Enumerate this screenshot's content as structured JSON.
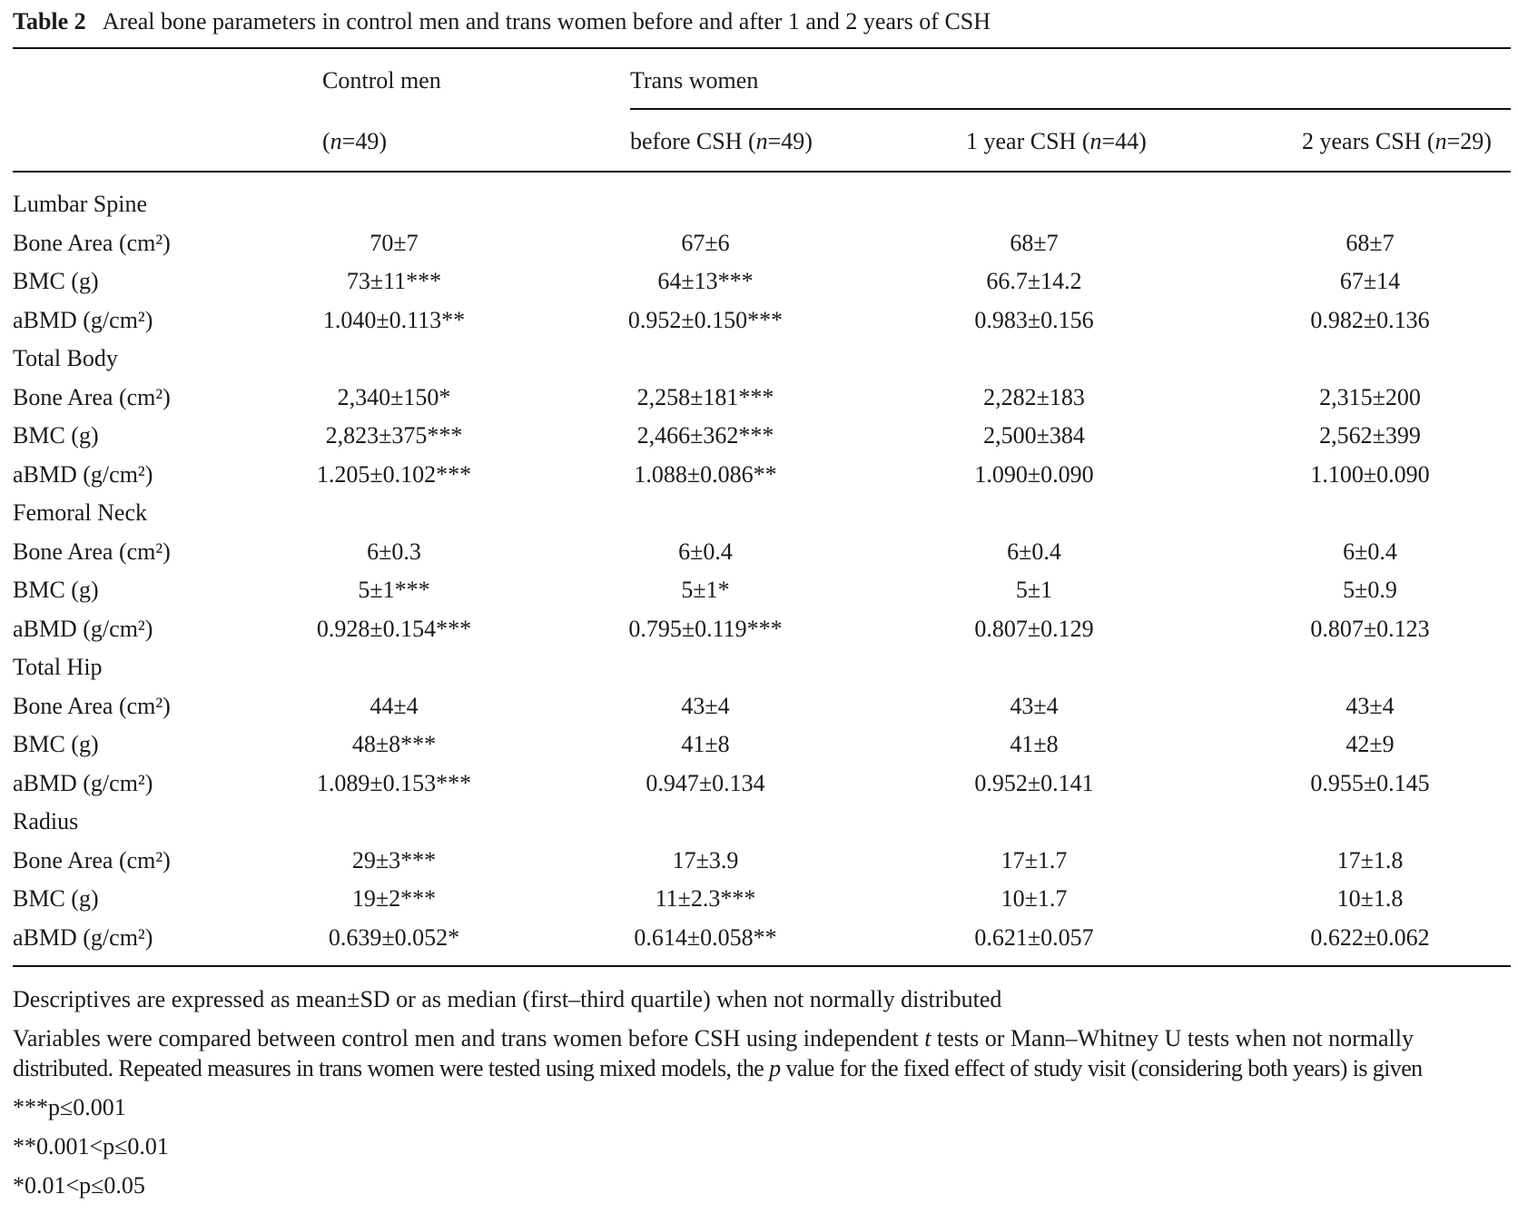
{
  "caption": {
    "label": "Table 2",
    "text": "Areal bone parameters in control men and trans women before and after 1 and 2 years of CSH"
  },
  "header": {
    "group1": "Control men",
    "group2": "Trans women",
    "columns": [
      {
        "pre": "(",
        "n": "n",
        "post": "=49)"
      },
      {
        "pre": "before CSH (",
        "n": "n",
        "post": "=49)"
      },
      {
        "pre": "1 year CSH (",
        "n": "n",
        "post": "=44)"
      },
      {
        "pre": "2 years CSH (",
        "n": "n",
        "post": "=29)"
      }
    ]
  },
  "sections": [
    {
      "name": "Lumbar Spine",
      "rows": [
        {
          "label": "Bone Area (cm²)",
          "values": [
            "70±7",
            "67±6",
            "68±7",
            "68±7"
          ]
        },
        {
          "label": "BMC (g)",
          "values": [
            "73±11***",
            "64±13***",
            "66.7±14.2",
            "67±14"
          ]
        },
        {
          "label": "aBMD (g/cm²)",
          "values": [
            "1.040±0.113**",
            "0.952±0.150***",
            "0.983±0.156",
            "0.982±0.136"
          ]
        }
      ]
    },
    {
      "name": "Total Body",
      "rows": [
        {
          "label": "Bone Area (cm²)",
          "values": [
            "2,340±150*",
            "2,258±181***",
            "2,282±183",
            "2,315±200"
          ]
        },
        {
          "label": "BMC (g)",
          "values": [
            "2,823±375***",
            "2,466±362***",
            "2,500±384",
            "2,562±399"
          ]
        },
        {
          "label": "aBMD (g/cm²)",
          "values": [
            "1.205±0.102***",
            "1.088±0.086**",
            "1.090±0.090",
            "1.100±0.090"
          ]
        }
      ]
    },
    {
      "name": "Femoral Neck",
      "rows": [
        {
          "label": "Bone Area (cm²)",
          "values": [
            "6±0.3",
            "6±0.4",
            "6±0.4",
            "6±0.4"
          ]
        },
        {
          "label": "BMC (g)",
          "values": [
            "5±1***",
            "5±1*",
            "5±1",
            "5±0.9"
          ]
        },
        {
          "label": "aBMD (g/cm²)",
          "values": [
            "0.928±0.154***",
            "0.795±0.119***",
            "0.807±0.129",
            "0.807±0.123"
          ]
        }
      ]
    },
    {
      "name": "Total Hip",
      "rows": [
        {
          "label": "Bone Area (cm²)",
          "values": [
            "44±4",
            "43±4",
            "43±4",
            "43±4"
          ]
        },
        {
          "label": "BMC (g)",
          "values": [
            "48±8***",
            "41±8",
            "41±8",
            "42±9"
          ]
        },
        {
          "label": "aBMD (g/cm²)",
          "values": [
            "1.089±0.153***",
            "0.947±0.134",
            "0.952±0.141",
            "0.955±0.145"
          ]
        }
      ]
    },
    {
      "name": "Radius",
      "rows": [
        {
          "label": "Bone Area (cm²)",
          "values": [
            "29±3***",
            "17±3.9",
            "17±1.7",
            "17±1.8"
          ]
        },
        {
          "label": "BMC (g)",
          "values": [
            "19±2***",
            "11±2.3***",
            "10±1.7",
            "10±1.8"
          ]
        },
        {
          "label": "aBMD (g/cm²)",
          "values": [
            "0.639±0.052*",
            "0.614±0.058**",
            "0.621±0.057",
            "0.622±0.062"
          ]
        }
      ]
    }
  ],
  "footnotes": {
    "descriptives": "Descriptives are expressed as mean±SD or as median (first–third quartile) when not normally distributed",
    "methods_line1_a": "Variables were compared between control men and trans women before CSH using independent ",
    "methods_line1_t": "t",
    "methods_line1_b": " tests or Mann–Whitney U tests when not normally",
    "methods_line2_a": "distributed. Repeated measures in trans women were tested using mixed models, the ",
    "methods_line2_p": "p",
    "methods_line2_b": " value for the fixed effect of study visit (considering both years) is given",
    "sig1": "***p≤0.001",
    "sig2": "**0.001<p≤0.01",
    "sig3": "*0.01<p≤0.05"
  }
}
